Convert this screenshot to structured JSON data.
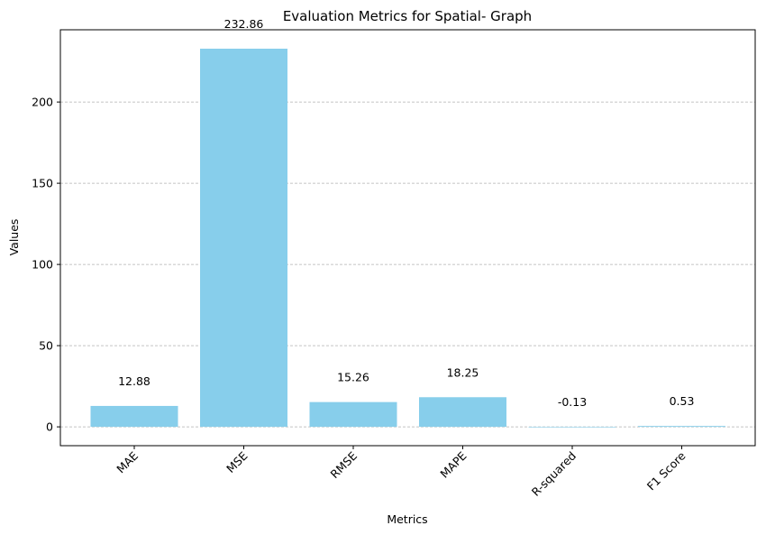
{
  "chart_data": {
    "type": "bar",
    "title": "Evaluation Metrics for Spatial- Graph",
    "xlabel": "Metrics",
    "ylabel": "Values",
    "categories": [
      "MAE",
      "MSE",
      "RMSE",
      "MAPE",
      "R-squared",
      "F1 Score"
    ],
    "values": [
      12.88,
      232.86,
      15.26,
      18.25,
      -0.13,
      0.53
    ],
    "data_labels": [
      "12.88",
      "232.86",
      "15.26",
      "18.25",
      "-0.13",
      "0.53"
    ],
    "yticks": [
      0,
      50,
      100,
      150,
      200
    ],
    "ylim": [
      -11.6,
      244.5
    ],
    "grid": "y-dashed",
    "bar_color": "#87CEEB",
    "grid_color": "#b0b0b0",
    "xtick_rotation": "45"
  }
}
